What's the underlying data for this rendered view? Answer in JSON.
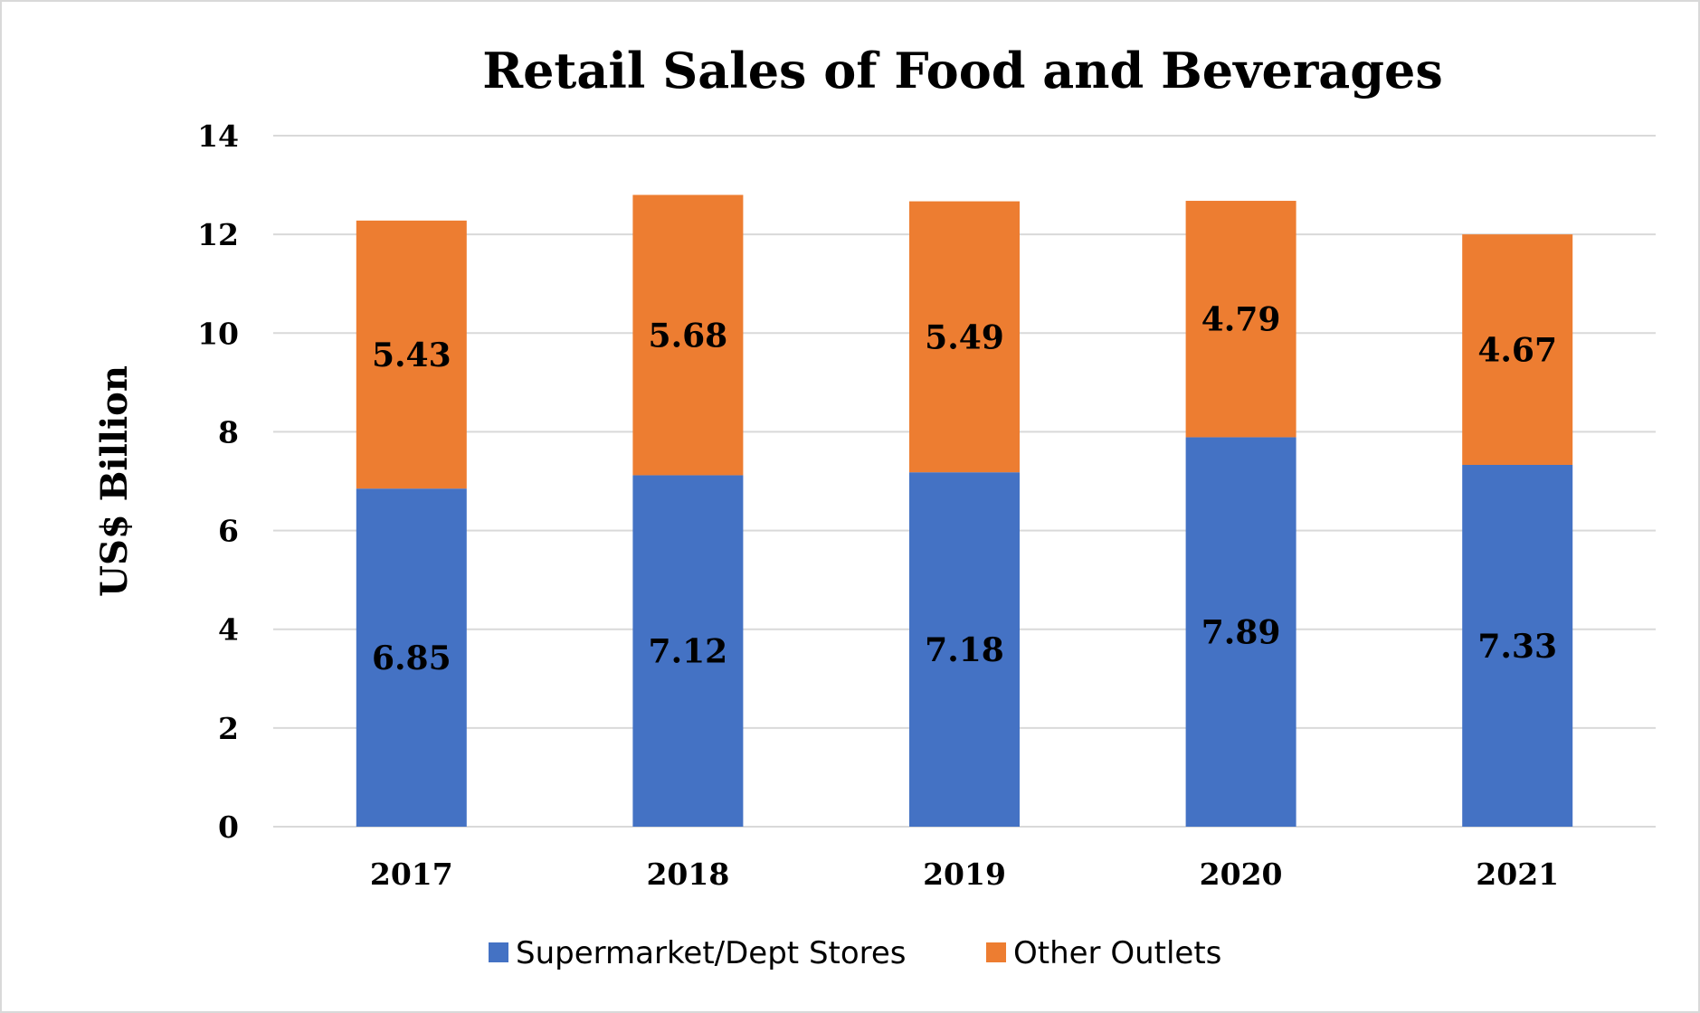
{
  "chart_data": {
    "type": "bar",
    "stacked": true,
    "title": "Retail Sales of Food and Beverages",
    "xlabel": "",
    "ylabel": "US$ Billion",
    "categories": [
      "2017",
      "2018",
      "2019",
      "2020",
      "2021"
    ],
    "ylim": [
      0,
      14
    ],
    "yticks": [
      "0",
      "2",
      "4",
      "6",
      "8",
      "10",
      "12",
      "14"
    ],
    "grid": true,
    "legend_position": "bottom",
    "series": [
      {
        "name": "Supermarket/Dept Stores",
        "values": [
          6.85,
          7.12,
          7.18,
          7.89,
          7.33
        ],
        "labels": [
          "6.85",
          "7.12",
          "7.18",
          "7.89",
          "7.33"
        ],
        "color": "#4472C4"
      },
      {
        "name": "Other Outlets",
        "values": [
          5.43,
          5.68,
          5.49,
          4.79,
          4.67
        ],
        "labels": [
          "5.43",
          "5.68",
          "5.49",
          "4.79",
          "4.67"
        ],
        "color": "#ED7D31"
      }
    ],
    "gridline_color": "#d9d9d9"
  }
}
